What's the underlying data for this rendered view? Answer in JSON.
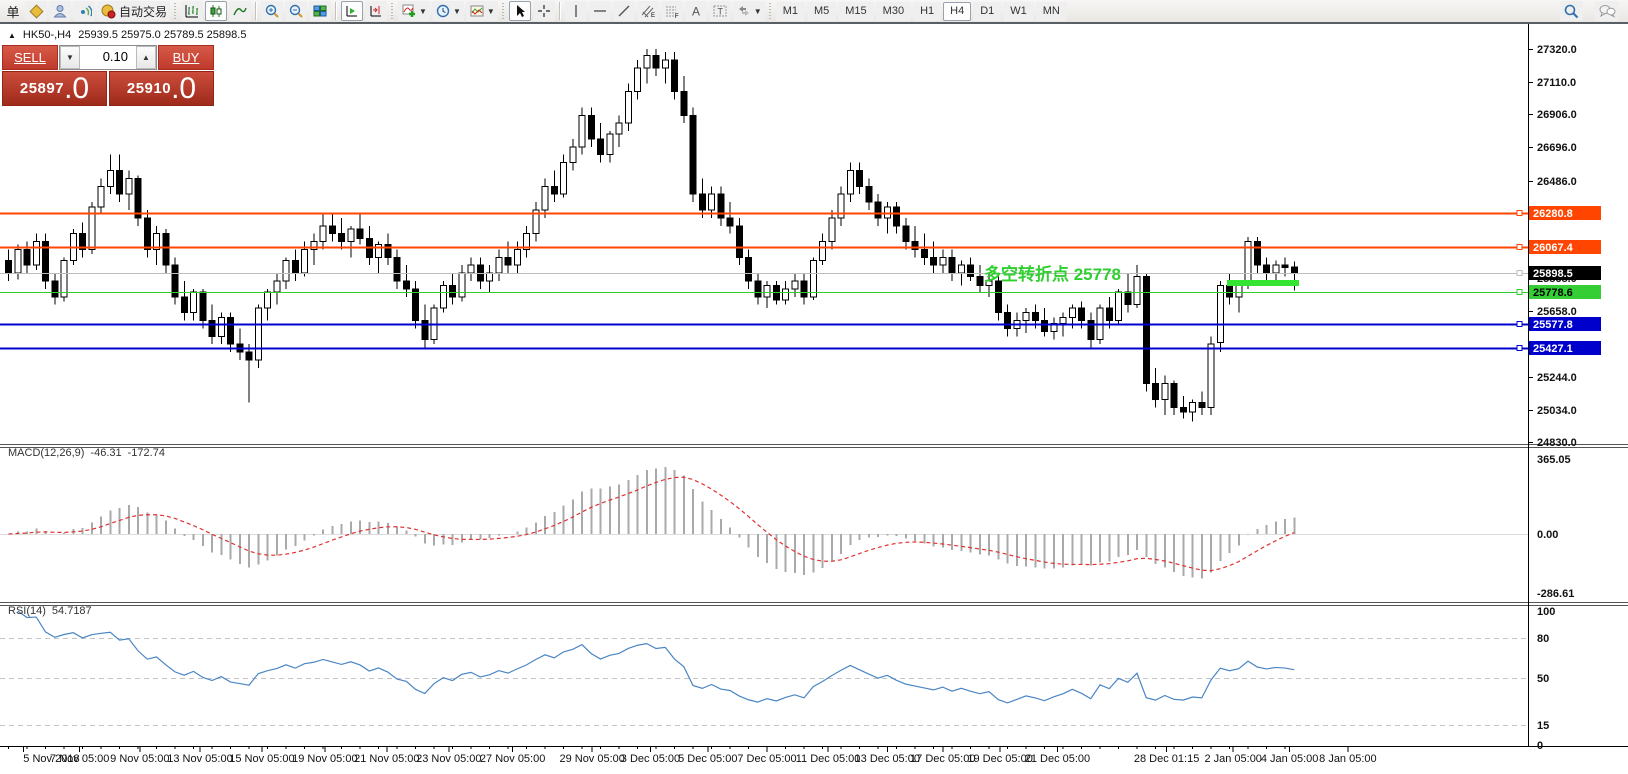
{
  "toolbar": {
    "order_button_label": "单",
    "auto_trading_label": "自动交易",
    "timeframes": [
      "M1",
      "M5",
      "M15",
      "M30",
      "H1",
      "H4",
      "D1",
      "W1",
      "MN"
    ],
    "active_timeframe": "H4",
    "volume_down_icon": "▼",
    "volume_up_icon": "▲"
  },
  "chart_header": {
    "collapse_icon": "▲",
    "title": "HK50-,H4",
    "ohlc": "25939.5 25975.0 25789.5 25898.5"
  },
  "trade_panel": {
    "sell_label": "SELL",
    "buy_label": "BUY",
    "volume": "0.10",
    "sell_price": "25897",
    "sell_price_decimal": ".0",
    "buy_price": "25910",
    "buy_price_decimal": ".0"
  },
  "annotation": {
    "text": "多空转折点 25778",
    "color": "#2fcf2f",
    "bar_color": "#35e335"
  },
  "macd_panel": {
    "label": "MACD(12,26,9)",
    "main_value": "-46.31",
    "signal_value": "-172.74",
    "axis_labels": [
      {
        "text": "365.05",
        "value": 365.05
      },
      {
        "text": "0.00",
        "value": 0
      },
      {
        "text": "-286.61",
        "value": -286.61
      }
    ]
  },
  "rsi_panel": {
    "label": "RSI(14)",
    "value": "54.7187",
    "axis_labels": [
      {
        "text": "100",
        "value": 100
      },
      {
        "text": "80",
        "value": 80
      },
      {
        "text": "50",
        "value": 50
      },
      {
        "text": "15",
        "value": 15
      },
      {
        "text": "0",
        "value": 0
      }
    ],
    "levels": [
      80,
      50,
      15
    ]
  },
  "price_axis": {
    "ticks": [
      {
        "text": "27320.0",
        "price": 27320.0
      },
      {
        "text": "27110.0",
        "price": 27110.0
      },
      {
        "text": "26906.0",
        "price": 26906.0
      },
      {
        "text": "26696.0",
        "price": 26696.0
      },
      {
        "text": "26486.0",
        "price": 26486.0
      },
      {
        "text": "25868.0",
        "price": 25868.0
      },
      {
        "text": "25658.0",
        "price": 25658.0
      },
      {
        "text": "25244.0",
        "price": 25244.0
      },
      {
        "text": "25034.0",
        "price": 25034.0
      },
      {
        "text": "24830.0",
        "price": 24830.0
      }
    ],
    "badges": [
      {
        "text": "26280.8",
        "price": 26280.8,
        "bg": "#ff4500",
        "fg": "#ffffff"
      },
      {
        "text": "26067.4",
        "price": 26067.4,
        "bg": "#ff4500",
        "fg": "#ffffff"
      },
      {
        "text": "25898.5",
        "price": 25898.5,
        "bg": "#000000",
        "fg": "#ffffff"
      },
      {
        "text": "25778.6",
        "price": 25778.6,
        "bg": "#35cf35",
        "fg": "#000000"
      },
      {
        "text": "25577.8",
        "price": 25577.8,
        "bg": "#0000cc",
        "fg": "#ffffff"
      },
      {
        "text": "25427.1",
        "price": 25427.1,
        "bg": "#0000cc",
        "fg": "#ffffff"
      }
    ]
  },
  "time_axis": {
    "labels": [
      {
        "text": "5 Nov 2018",
        "i": 1.6
      },
      {
        "text": "7 Nov 05:00",
        "i": 7.7
      },
      {
        "text": "9 Nov 05:00",
        "i": 14.2
      },
      {
        "text": "13 Nov 05:00",
        "i": 20.7
      },
      {
        "text": "15 Nov 05:00",
        "i": 27.4
      },
      {
        "text": "19 Nov 05:00",
        "i": 34.2
      },
      {
        "text": "21 Nov 05:00",
        "i": 40.9
      },
      {
        "text": "23 Nov 05:00",
        "i": 47.6
      },
      {
        "text": "27 Nov 05:00",
        "i": 54.5
      },
      {
        "text": "29 Nov 05:00",
        "i": 63.1
      },
      {
        "text": "3 Dec 05:00",
        "i": 69.4
      },
      {
        "text": "5 Dec 05:00",
        "i": 75.6
      },
      {
        "text": "7 Dec 05:00",
        "i": 82.0
      },
      {
        "text": "11 Dec 05:00",
        "i": 88.6
      },
      {
        "text": "13 Dec 05:00",
        "i": 95.0
      },
      {
        "text": "17 Dec 05:00",
        "i": 101.0
      },
      {
        "text": "19 Dec 05:00",
        "i": 107.2
      },
      {
        "text": "21 Dec 05:00",
        "i": 113.4
      },
      {
        "text": "28 Dec 01:15",
        "i": 125.2
      },
      {
        "text": "2 Jan 05:00",
        "i": 132.4
      },
      {
        "text": "4 Jan 05:00",
        "i": 138.5
      },
      {
        "text": "8 Jan 05:00",
        "i": 144.8
      }
    ]
  },
  "chart_data": {
    "type": "candlestick",
    "symbol": "HK50-",
    "timeframe": "H4",
    "ylim": [
      24830.0,
      27320.0
    ],
    "current_price": 25898.5,
    "hlines": [
      {
        "price": 26280.8,
        "color": "#ff4500",
        "width": 2
      },
      {
        "price": 26067.4,
        "color": "#ff4500",
        "width": 2
      },
      {
        "price": 25898.5,
        "color": "#bdbdbd",
        "width": 1
      },
      {
        "price": 25778.6,
        "color": "#2fcf2f",
        "width": 1
      },
      {
        "price": 25577.8,
        "color": "#0000cc",
        "width": 2
      },
      {
        "price": 25427.1,
        "color": "#0000cc",
        "width": 2
      }
    ],
    "indicators": {
      "macd": {
        "fast": 12,
        "slow": 26,
        "signal": 9,
        "current_main": -46.31,
        "current_signal": -172.74
      },
      "rsi": {
        "period": 14,
        "current": 54.7187
      }
    },
    "candles": [
      [
        25980,
        26050,
        25850,
        25900
      ],
      [
        25900,
        26080,
        25860,
        26050
      ],
      [
        26050,
        26100,
        25900,
        25950
      ],
      [
        25950,
        26150,
        25920,
        26100
      ],
      [
        26100,
        26150,
        25800,
        25850
      ],
      [
        25850,
        25900,
        25700,
        25750
      ],
      [
        25750,
        26000,
        25720,
        25980
      ],
      [
        25980,
        26180,
        25950,
        26150
      ],
      [
        26150,
        26220,
        26000,
        26050
      ],
      [
        26050,
        26350,
        26020,
        26320
      ],
      [
        26320,
        26500,
        26280,
        26450
      ],
      [
        26450,
        26650,
        26400,
        26550
      ],
      [
        26550,
        26650,
        26350,
        26400
      ],
      [
        26400,
        26550,
        26300,
        26500
      ],
      [
        26500,
        26520,
        26200,
        26250
      ],
      [
        26250,
        26300,
        26000,
        26050
      ],
      [
        26050,
        26200,
        25950,
        26150
      ],
      [
        26150,
        26180,
        25900,
        25950
      ],
      [
        25950,
        26000,
        25700,
        25750
      ],
      [
        25750,
        25850,
        25600,
        25650
      ],
      [
        25650,
        25800,
        25600,
        25780
      ],
      [
        25780,
        25800,
        25550,
        25600
      ],
      [
        25600,
        25700,
        25450,
        25500
      ],
      [
        25500,
        25650,
        25450,
        25620
      ],
      [
        25620,
        25650,
        25400,
        25450
      ],
      [
        25450,
        25550,
        25350,
        25400
      ],
      [
        25400,
        25450,
        25080,
        25350
      ],
      [
        25350,
        25700,
        25300,
        25680
      ],
      [
        25680,
        25800,
        25600,
        25780
      ],
      [
        25780,
        25900,
        25700,
        25850
      ],
      [
        25850,
        26000,
        25800,
        25980
      ],
      [
        25980,
        26050,
        25850,
        25900
      ],
      [
        25900,
        26100,
        25880,
        26050
      ],
      [
        26050,
        26150,
        25950,
        26100
      ],
      [
        26100,
        26280,
        26050,
        26200
      ],
      [
        26200,
        26280,
        26100,
        26150
      ],
      [
        26150,
        26250,
        26050,
        26100
      ],
      [
        26100,
        26200,
        26000,
        26180
      ],
      [
        26180,
        26280,
        26080,
        26120
      ],
      [
        26120,
        26200,
        25950,
        26000
      ],
      [
        26000,
        26100,
        25900,
        26080
      ],
      [
        26080,
        26150,
        25950,
        26000
      ],
      [
        26000,
        26050,
        25800,
        25850
      ],
      [
        25850,
        25950,
        25750,
        25800
      ],
      [
        25800,
        25850,
        25550,
        25600
      ],
      [
        25600,
        25700,
        25430,
        25480
      ],
      [
        25480,
        25700,
        25450,
        25680
      ],
      [
        25680,
        25850,
        25650,
        25820
      ],
      [
        25820,
        25900,
        25700,
        25750
      ],
      [
        25750,
        25950,
        25720,
        25900
      ],
      [
        25900,
        26000,
        25850,
        25950
      ],
      [
        25950,
        26000,
        25800,
        25850
      ],
      [
        25850,
        25950,
        25780,
        25900
      ],
      [
        25900,
        26050,
        25850,
        26000
      ],
      [
        26000,
        26100,
        25900,
        25950
      ],
      [
        25950,
        26100,
        25900,
        26050
      ],
      [
        26050,
        26200,
        26000,
        26150
      ],
      [
        26150,
        26350,
        26100,
        26300
      ],
      [
        26300,
        26500,
        26250,
        26450
      ],
      [
        26450,
        26550,
        26350,
        26400
      ],
      [
        26400,
        26650,
        26380,
        26600
      ],
      [
        26600,
        26750,
        26550,
        26700
      ],
      [
        26700,
        26950,
        26650,
        26900
      ],
      [
        26900,
        26950,
        26700,
        26750
      ],
      [
        26750,
        26850,
        26600,
        26650
      ],
      [
        26650,
        26800,
        26600,
        26780
      ],
      [
        26780,
        26900,
        26700,
        26850
      ],
      [
        26850,
        27100,
        26800,
        27050
      ],
      [
        27050,
        27250,
        27000,
        27200
      ],
      [
        27200,
        27320,
        27100,
        27280
      ],
      [
        27280,
        27320,
        27150,
        27200
      ],
      [
        27200,
        27300,
        27100,
        27250
      ],
      [
        27250,
        27300,
        27000,
        27050
      ],
      [
        27050,
        27150,
        26850,
        26900
      ],
      [
        26900,
        26950,
        26350,
        26400
      ],
      [
        26400,
        26500,
        26250,
        26300
      ],
      [
        26300,
        26450,
        26250,
        26400
      ],
      [
        26400,
        26450,
        26200,
        26250
      ],
      [
        26250,
        26350,
        26150,
        26200
      ],
      [
        26200,
        26250,
        25950,
        26000
      ],
      [
        26000,
        26050,
        25800,
        25850
      ],
      [
        25850,
        25900,
        25700,
        25750
      ],
      [
        25750,
        25850,
        25680,
        25820
      ],
      [
        25820,
        25850,
        25700,
        25730
      ],
      [
        25730,
        25850,
        25700,
        25800
      ],
      [
        25800,
        25900,
        25750,
        25850
      ],
      [
        25850,
        25900,
        25700,
        25750
      ],
      [
        25750,
        26000,
        25730,
        25980
      ],
      [
        25980,
        26150,
        25950,
        26100
      ],
      [
        26100,
        26300,
        26050,
        26250
      ],
      [
        26250,
        26450,
        26200,
        26400
      ],
      [
        26400,
        26600,
        26350,
        26550
      ],
      [
        26550,
        26600,
        26400,
        26450
      ],
      [
        26450,
        26500,
        26300,
        26350
      ],
      [
        26350,
        26400,
        26200,
        26250
      ],
      [
        26250,
        26350,
        26150,
        26320
      ],
      [
        26320,
        26350,
        26150,
        26200
      ],
      [
        26200,
        26250,
        26050,
        26100
      ],
      [
        26100,
        26200,
        26000,
        26050
      ],
      [
        26050,
        26150,
        25950,
        26000
      ],
      [
        26000,
        26100,
        25900,
        25950
      ],
      [
        25950,
        26050,
        25900,
        26000
      ],
      [
        26000,
        26050,
        25850,
        25900
      ],
      [
        25900,
        25980,
        25820,
        25950
      ],
      [
        25950,
        26000,
        25850,
        25880
      ],
      [
        25880,
        25950,
        25780,
        25820
      ],
      [
        25820,
        25900,
        25750,
        25850
      ],
      [
        25850,
        25880,
        25600,
        25650
      ],
      [
        25650,
        25700,
        25500,
        25550
      ],
      [
        25550,
        25650,
        25500,
        25600
      ],
      [
        25600,
        25680,
        25520,
        25650
      ],
      [
        25650,
        25700,
        25550,
        25600
      ],
      [
        25600,
        25680,
        25500,
        25530
      ],
      [
        25530,
        25620,
        25480,
        25580
      ],
      [
        25580,
        25650,
        25500,
        25620
      ],
      [
        25620,
        25700,
        25550,
        25680
      ],
      [
        25680,
        25720,
        25550,
        25600
      ],
      [
        25600,
        25650,
        25430,
        25480
      ],
      [
        25480,
        25700,
        25450,
        25680
      ],
      [
        25680,
        25750,
        25550,
        25600
      ],
      [
        25600,
        25800,
        25580,
        25780
      ],
      [
        25780,
        25900,
        25650,
        25700
      ],
      [
        25700,
        25950,
        25680,
        25880
      ],
      [
        25880,
        25900,
        25150,
        25200
      ],
      [
        25200,
        25300,
        25050,
        25100
      ],
      [
        25100,
        25250,
        25000,
        25200
      ],
      [
        25200,
        25220,
        25000,
        25050
      ],
      [
        25050,
        25120,
        24980,
        25020
      ],
      [
        25020,
        25100,
        24960,
        25080
      ],
      [
        25080,
        25150,
        25000,
        25050
      ],
      [
        25050,
        25500,
        25000,
        25450
      ],
      [
        25460,
        25850,
        25400,
        25820
      ],
      [
        25820,
        25900,
        25700,
        25750
      ],
      [
        25750,
        25850,
        25650,
        25820
      ],
      [
        25820,
        26130,
        25800,
        26100
      ],
      [
        26100,
        26130,
        25900,
        25950
      ],
      [
        25950,
        26000,
        25850,
        25900
      ],
      [
        25900,
        25980,
        25830,
        25950
      ],
      [
        25950,
        26000,
        25880,
        25935
      ],
      [
        25939.5,
        25975.0,
        25789.5,
        25898.5
      ]
    ]
  }
}
